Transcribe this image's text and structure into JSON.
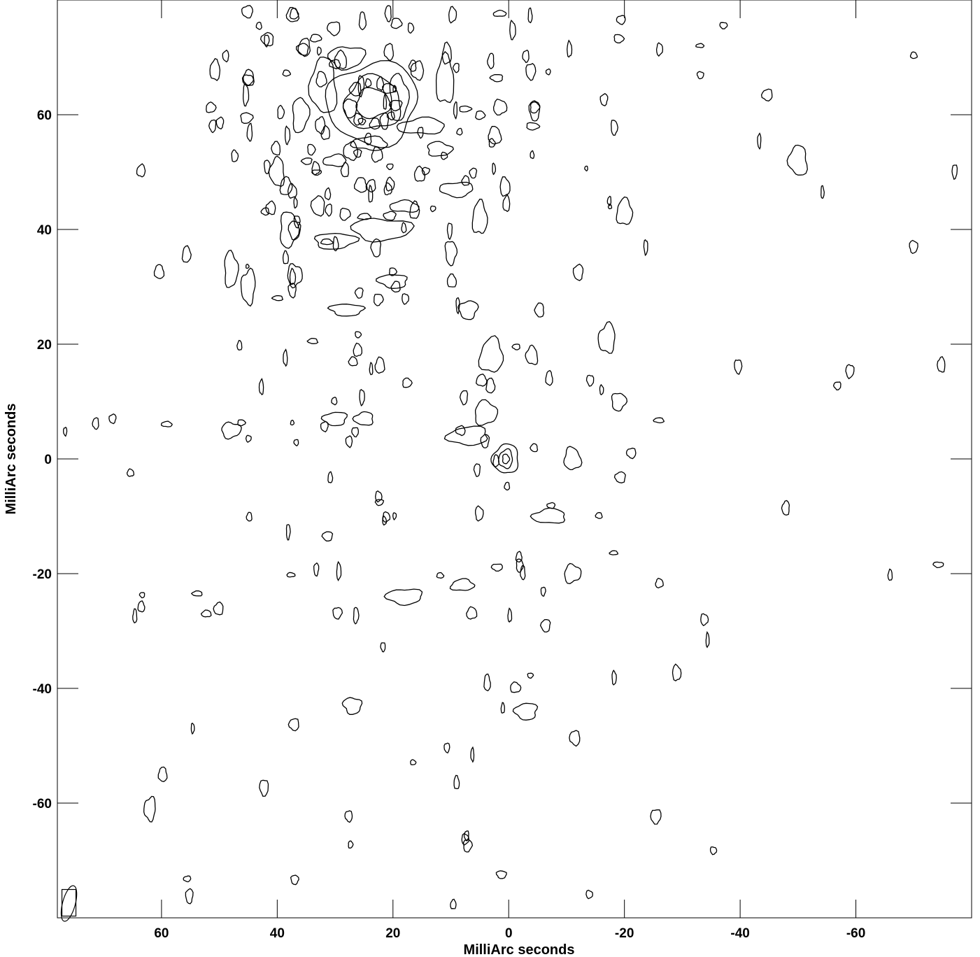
{
  "chart_data": {
    "type": "contour",
    "xlabel": "MilliArc seconds",
    "ylabel": "MilliArc seconds",
    "xlim": [
      78,
      -80
    ],
    "ylim": [
      -80,
      80
    ],
    "x_ticks": [
      60,
      40,
      20,
      0,
      -20,
      -40,
      -60
    ],
    "y_ticks": [
      60,
      40,
      20,
      0,
      -20,
      -40,
      -60
    ],
    "x_tick_labels": [
      "60",
      "40",
      "20",
      "0",
      "-20",
      "-40",
      "-60"
    ],
    "y_tick_labels": [
      "60",
      "40",
      "20",
      "0",
      "-20",
      "-40",
      "-60"
    ],
    "grid": false,
    "contour_color": "#000000",
    "beam": {
      "x": 76,
      "y": -77.5,
      "major": 3.2,
      "minor": 1.1,
      "pa_deg": 15
    },
    "sources": [
      {
        "name": "",
        "x": 23.5,
        "y": 62,
        "levels": [
          [
            8,
            7
          ],
          [
            5,
            4.5
          ],
          [
            3,
            2.5
          ]
        ]
      },
      {
        "name": "",
        "x": 0.5,
        "y": 0,
        "levels": [
          [
            2.2,
            2.6
          ],
          [
            1.2,
            1.6
          ],
          [
            0.6,
            0.8
          ]
        ]
      }
    ],
    "structures": [
      {
        "x": 32,
        "y": 65,
        "w": 2.2,
        "h": 5.0
      },
      {
        "x": 28,
        "y": 70,
        "w": 3.0,
        "h": 2.0
      },
      {
        "x": 19,
        "y": 63,
        "w": 1.6,
        "h": 4.0
      },
      {
        "x": 15,
        "y": 58,
        "w": 4.0,
        "h": 1.4
      },
      {
        "x": 24,
        "y": 55,
        "w": 3.0,
        "h": 1.2
      },
      {
        "x": 36,
        "y": 60,
        "w": 1.4,
        "h": 3.0
      },
      {
        "x": 11,
        "y": 66,
        "w": 1.6,
        "h": 4.0
      },
      {
        "x": 12,
        "y": 54,
        "w": 2.2,
        "h": 1.2
      },
      {
        "x": 30,
        "y": 52,
        "w": 2.0,
        "h": 1.0
      },
      {
        "x": 40,
        "y": 50,
        "w": 1.2,
        "h": 2.6
      },
      {
        "x": 9,
        "y": 47,
        "w": 3.0,
        "h": 1.2
      },
      {
        "x": 22,
        "y": 40,
        "w": 5.0,
        "h": 2.0
      },
      {
        "x": 30,
        "y": 38,
        "w": 3.5,
        "h": 1.4
      },
      {
        "x": 18,
        "y": 44,
        "w": 2.5,
        "h": 1.0
      },
      {
        "x": 38,
        "y": 40,
        "w": 1.6,
        "h": 3.0
      },
      {
        "x": 5,
        "y": 42,
        "w": 1.2,
        "h": 3.0
      },
      {
        "x": 10,
        "y": 36,
        "w": 1.0,
        "h": 2.0
      },
      {
        "x": 28,
        "y": 26,
        "w": 3.0,
        "h": 1.0
      },
      {
        "x": 20,
        "y": 31,
        "w": 2.5,
        "h": 1.2
      },
      {
        "x": 7,
        "y": 26,
        "w": 1.6,
        "h": 1.6
      },
      {
        "x": 45,
        "y": 30,
        "w": 1.2,
        "h": 3.0
      },
      {
        "x": 3,
        "y": 18,
        "w": 2.0,
        "h": 3.0
      },
      {
        "x": -4,
        "y": 18,
        "w": 1.0,
        "h": 1.6
      },
      {
        "x": 30,
        "y": 7,
        "w": 2.0,
        "h": 1.2
      },
      {
        "x": 25,
        "y": 7,
        "w": 1.6,
        "h": 1.2
      },
      {
        "x": 7,
        "y": 4,
        "w": 3.5,
        "h": 1.6
      },
      {
        "x": 4,
        "y": 8,
        "w": 2.0,
        "h": 2.0
      },
      {
        "x": -7,
        "y": -10,
        "w": 3.0,
        "h": 1.2
      },
      {
        "x": -11,
        "y": 0,
        "w": 1.4,
        "h": 2.0
      },
      {
        "x": 48,
        "y": 33,
        "w": 1.2,
        "h": 3.0
      },
      {
        "x": 37,
        "y": 32,
        "w": 1.2,
        "h": 2.0
      },
      {
        "x": -17,
        "y": 21,
        "w": 1.4,
        "h": 2.6
      },
      {
        "x": -20,
        "y": 43,
        "w": 1.4,
        "h": 2.2
      },
      {
        "x": -50,
        "y": 52,
        "w": 1.6,
        "h": 2.6
      },
      {
        "x": 18,
        "y": -24,
        "w": 3.0,
        "h": 1.4
      },
      {
        "x": 8,
        "y": -22,
        "w": 2.0,
        "h": 1.0
      },
      {
        "x": -3,
        "y": -44,
        "w": 2.0,
        "h": 1.4
      },
      {
        "x": 27,
        "y": -43,
        "w": 1.6,
        "h": 1.4
      },
      {
        "x": 62,
        "y": -61,
        "w": 1.0,
        "h": 2.0
      },
      {
        "x": -11,
        "y": -20,
        "w": 1.4,
        "h": 1.6
      },
      {
        "x": 48,
        "y": 5,
        "w": 1.6,
        "h": 1.4
      },
      {
        "x": -19,
        "y": 10,
        "w": 1.2,
        "h": 1.6
      }
    ]
  }
}
